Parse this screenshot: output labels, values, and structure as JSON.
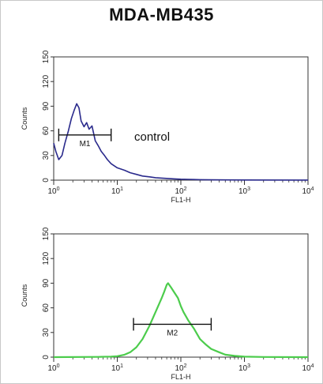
{
  "title": "MDA-MB435",
  "chart_data": [
    {
      "type": "area",
      "title": "",
      "xlabel": "FL1-H",
      "ylabel": "Counts",
      "xscale": "log",
      "xlim": [
        1,
        10000
      ],
      "ylim": [
        0,
        150
      ],
      "xticks": [
        {
          "base": "10",
          "exp": "0"
        },
        {
          "base": "10",
          "exp": "1"
        },
        {
          "base": "10",
          "exp": "2"
        },
        {
          "base": "10",
          "exp": "3"
        },
        {
          "base": "10",
          "exp": "4"
        }
      ],
      "yticks": [
        "0",
        "30",
        "60",
        "90",
        "120",
        "150"
      ],
      "annotation": "control",
      "color": "#2a2a8c",
      "gate": {
        "label": "M1",
        "x_start": 1.2,
        "x_end": 8
      },
      "series": [
        {
          "x": [
            1,
            1.08,
            1.2,
            1.35,
            1.5,
            1.7,
            1.9,
            2.1,
            2.3,
            2.5,
            2.7,
            3.0,
            3.3,
            3.6,
            4.0,
            4.5,
            5.0,
            5.6,
            6.3,
            7.0,
            8.0,
            10,
            13,
            16,
            20,
            25,
            32,
            40,
            50,
            63,
            80,
            100,
            130,
            160,
            200,
            300,
            500,
            1000,
            10000
          ],
          "y": [
            45,
            35,
            25,
            30,
            45,
            60,
            75,
            85,
            93,
            88,
            72,
            65,
            70,
            62,
            66,
            48,
            42,
            35,
            30,
            25,
            20,
            15,
            12,
            9,
            7,
            5,
            4,
            3,
            2.5,
            2,
            1.5,
            1.2,
            1,
            0.8,
            0.6,
            0.4,
            0.3,
            0.2,
            0.1
          ]
        }
      ]
    },
    {
      "type": "area",
      "title": "",
      "xlabel": "FL1-H",
      "ylabel": "Counts",
      "xscale": "log",
      "xlim": [
        1,
        10000
      ],
      "ylim": [
        0,
        150
      ],
      "xticks": [
        {
          "base": "10",
          "exp": "0"
        },
        {
          "base": "10",
          "exp": "1"
        },
        {
          "base": "10",
          "exp": "2"
        },
        {
          "base": "10",
          "exp": "3"
        },
        {
          "base": "10",
          "exp": "4"
        }
      ],
      "yticks": [
        "0",
        "30",
        "60",
        "90",
        "120",
        "150"
      ],
      "annotation": "",
      "color": "#4ccc4c",
      "gate": {
        "label": "M2",
        "x_start": 18,
        "x_end": 300
      },
      "series": [
        {
          "x": [
            1,
            5,
            8,
            10,
            13,
            16,
            20,
            25,
            32,
            40,
            50,
            55,
            60,
            63,
            70,
            80,
            90,
            100,
            110,
            130,
            160,
            200,
            250,
            300,
            400,
            500,
            700,
            1000,
            2000,
            10000
          ],
          "y": [
            0,
            0.3,
            0.7,
            1.2,
            3,
            6,
            12,
            22,
            38,
            55,
            72,
            80,
            88,
            90,
            85,
            78,
            72,
            62,
            55,
            45,
            35,
            22,
            15,
            10,
            6,
            3,
            1.5,
            0.6,
            0.2,
            0
          ]
        }
      ]
    }
  ]
}
